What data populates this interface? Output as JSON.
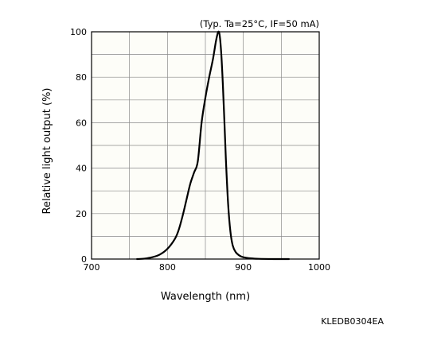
{
  "chart_data": {
    "type": "line",
    "title": "",
    "condition_note": "(Typ. Ta=25°C, IF=50 mA)",
    "xlabel": "Wavelength (nm)",
    "ylabel": "Relative light output (%)",
    "xlim": [
      700,
      1000
    ],
    "ylim": [
      0,
      100
    ],
    "x_ticks": [
      700,
      800,
      900,
      1000
    ],
    "y_ticks": [
      0,
      20,
      40,
      60,
      80,
      100
    ],
    "x_minor_grid_step": 50,
    "y_minor_grid_step": 10,
    "grid": true,
    "figure_code": "KLEDB0304EA",
    "series": [
      {
        "x": [
          760,
          770,
          780,
          790,
          800,
          810,
          815,
          820,
          825,
          830,
          835,
          840,
          845,
          850,
          855,
          860,
          864,
          867,
          869,
          871,
          873,
          875,
          877,
          880,
          883,
          886,
          890,
          895,
          900,
          910,
          920,
          940,
          960
        ],
        "y": [
          0,
          0.2,
          0.8,
          2,
          4.5,
          9,
          13,
          19,
          26,
          33,
          38,
          43,
          60,
          71,
          80,
          88,
          96,
          100,
          98,
          90,
          77,
          61,
          44,
          24,
          12,
          6,
          3,
          1.5,
          0.8,
          0.3,
          0.1,
          0,
          0
        ]
      }
    ]
  }
}
